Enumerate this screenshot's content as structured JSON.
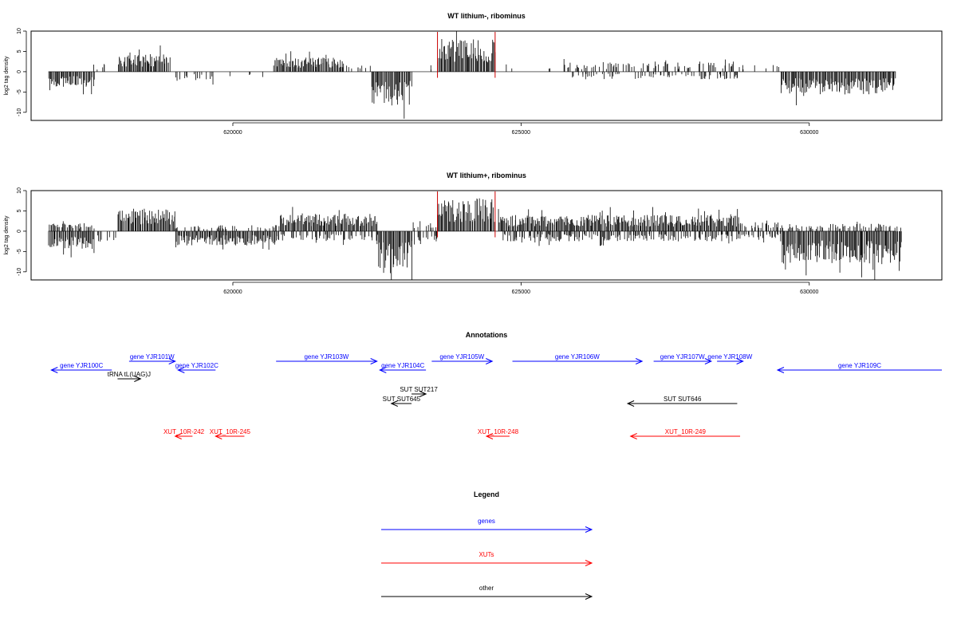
{
  "chart_data": [
    {
      "type": "bar",
      "title": "WT lithium-, ribominus",
      "ylabel": "log2 tag density",
      "xlim": [
        616500,
        632300
      ],
      "ylim": [
        -12,
        10
      ],
      "xticks": [
        620000,
        625000,
        630000
      ],
      "yticks": [
        10,
        5,
        0,
        -5,
        -10
      ],
      "highlight_region": {
        "start": 623550,
        "end": 624550,
        "color": "#cc0000"
      },
      "segments": [
        {
          "start": 616800,
          "end": 617600,
          "direction": "minus",
          "amp": 3.0
        },
        {
          "start": 617400,
          "end": 618000,
          "direction": "plus",
          "amp": 1.5,
          "density": 0.15
        },
        {
          "start": 618000,
          "end": 618900,
          "direction": "plus",
          "amp": 3.5
        },
        {
          "start": 619000,
          "end": 619800,
          "direction": "minus",
          "amp": 1.8,
          "density": 0.3
        },
        {
          "start": 619800,
          "end": 620600,
          "direction": "minus",
          "amp": 1.0,
          "density": 0.1
        },
        {
          "start": 620700,
          "end": 621900,
          "direction": "plus",
          "amp": 2.8
        },
        {
          "start": 621900,
          "end": 622400,
          "direction": "plus",
          "amp": 1.8,
          "density": 0.5
        },
        {
          "start": 622400,
          "end": 623100,
          "direction": "minus",
          "amp": 6.5
        },
        {
          "start": 623100,
          "end": 623550,
          "direction": "plus",
          "amp": 1.0,
          "density": 0.15
        },
        {
          "start": 623550,
          "end": 624550,
          "direction": "plus",
          "amp": 6.5
        },
        {
          "start": 624600,
          "end": 625800,
          "direction": "plus",
          "amp": 1.8,
          "density": 0.15
        },
        {
          "start": 625800,
          "end": 627200,
          "direction": "plus",
          "amp": 1.8,
          "density": 0.35
        },
        {
          "start": 625800,
          "end": 627200,
          "direction": "minus",
          "amp": 1.5,
          "density": 0.2
        },
        {
          "start": 627200,
          "end": 628800,
          "direction": "plus",
          "amp": 2.0,
          "density": 0.45
        },
        {
          "start": 627200,
          "end": 628800,
          "direction": "minus",
          "amp": 1.5,
          "density": 0.35
        },
        {
          "start": 628800,
          "end": 629500,
          "direction": "plus",
          "amp": 1.5,
          "density": 0.2
        },
        {
          "start": 629500,
          "end": 631500,
          "direction": "minus",
          "amp": 4.5
        }
      ]
    },
    {
      "type": "bar",
      "title": "WT lithium+, ribominus",
      "ylabel": "log2 tag density",
      "xlim": [
        616500,
        632300
      ],
      "ylim": [
        -12,
        10
      ],
      "xticks": [
        620000,
        625000,
        630000
      ],
      "yticks": [
        10,
        5,
        0,
        -5,
        -10
      ],
      "highlight_region": {
        "start": 623550,
        "end": 624550,
        "color": "#cc0000"
      },
      "segments": [
        {
          "start": 616800,
          "end": 617600,
          "direction": "plus",
          "amp": 1.6,
          "density": 0.6
        },
        {
          "start": 616800,
          "end": 617600,
          "direction": "minus",
          "amp": 3.5
        },
        {
          "start": 617600,
          "end": 618000,
          "direction": "minus",
          "amp": 2.0,
          "density": 0.5
        },
        {
          "start": 618000,
          "end": 619000,
          "direction": "plus",
          "amp": 4.5
        },
        {
          "start": 619000,
          "end": 620800,
          "direction": "minus",
          "amp": 2.8
        },
        {
          "start": 619000,
          "end": 620800,
          "direction": "plus",
          "amp": 1.2,
          "density": 0.3
        },
        {
          "start": 620800,
          "end": 622500,
          "direction": "plus",
          "amp": 3.5
        },
        {
          "start": 620800,
          "end": 622500,
          "direction": "minus",
          "amp": 2.0,
          "density": 0.5
        },
        {
          "start": 622500,
          "end": 623100,
          "direction": "minus",
          "amp": 7.5
        },
        {
          "start": 623100,
          "end": 623550,
          "direction": "plus",
          "amp": 2.0,
          "density": 0.5
        },
        {
          "start": 623100,
          "end": 623550,
          "direction": "minus",
          "amp": 2.0,
          "density": 0.5
        },
        {
          "start": 623550,
          "end": 624550,
          "direction": "plus",
          "amp": 6.5
        },
        {
          "start": 624600,
          "end": 628800,
          "direction": "plus",
          "amp": 3.2
        },
        {
          "start": 624600,
          "end": 628800,
          "direction": "minus",
          "amp": 2.0,
          "density": 0.6
        },
        {
          "start": 628800,
          "end": 629500,
          "direction": "plus",
          "amp": 1.8,
          "density": 0.6
        },
        {
          "start": 628800,
          "end": 629500,
          "direction": "minus",
          "amp": 1.5,
          "density": 0.5
        },
        {
          "start": 629500,
          "end": 631600,
          "direction": "minus",
          "amp": 6.5
        },
        {
          "start": 629500,
          "end": 631600,
          "direction": "plus",
          "amp": 1.5,
          "density": 0.4
        }
      ]
    }
  ],
  "annotations": {
    "title": "Annotations",
    "features": [
      {
        "label": "gene YJR100C",
        "kind": "gene",
        "color": "#0000ff",
        "row": 2,
        "start": 616850,
        "end": 617900,
        "strand": "-"
      },
      {
        "label": "gene YJR101W",
        "kind": "gene",
        "color": "#0000ff",
        "row": 1,
        "start": 618200,
        "end": 619000,
        "strand": "+"
      },
      {
        "label": "gene YJR102C",
        "kind": "gene",
        "color": "#0000ff",
        "row": 2,
        "start": 619050,
        "end": 619700,
        "strand": "-"
      },
      {
        "label": "tRNA tL(UAG)J",
        "kind": "other",
        "color": "#000000",
        "row": 3,
        "start": 618000,
        "end": 618400,
        "strand": "+"
      },
      {
        "label": "gene YJR103W",
        "kind": "gene",
        "color": "#0000ff",
        "row": 1,
        "start": 620750,
        "end": 622500,
        "strand": "+"
      },
      {
        "label": "gene YJR104C",
        "kind": "gene",
        "color": "#0000ff",
        "row": 2,
        "start": 622550,
        "end": 623350,
        "strand": "-"
      },
      {
        "label": "gene YJR105W",
        "kind": "gene",
        "color": "#0000ff",
        "row": 1,
        "start": 623450,
        "end": 624500,
        "strand": "+"
      },
      {
        "label": "gene YJR106W",
        "kind": "gene",
        "color": "#0000ff",
        "row": 1,
        "start": 624850,
        "end": 627100,
        "strand": "+"
      },
      {
        "label": "gene YJR107W",
        "kind": "gene",
        "color": "#0000ff",
        "row": 1,
        "start": 627300,
        "end": 628300,
        "strand": "+"
      },
      {
        "label": "gene YJR108W",
        "kind": "gene",
        "color": "#0000ff",
        "row": 1,
        "start": 628400,
        "end": 628850,
        "strand": "+"
      },
      {
        "label": "gene YJR109C",
        "kind": "gene",
        "color": "#0000ff",
        "row": 2,
        "start": 629450,
        "end": 632300,
        "strand": "-"
      },
      {
        "label": "SUT SUT217",
        "kind": "other",
        "color": "#000000",
        "row": 4,
        "start": 623100,
        "end": 623350,
        "strand": "+"
      },
      {
        "label": "SUT SUT645",
        "kind": "other",
        "color": "#000000",
        "row": 5,
        "start": 622750,
        "end": 623100,
        "strand": "-"
      },
      {
        "label": "SUT SUT646",
        "kind": "other",
        "color": "#000000",
        "row": 5,
        "start": 626850,
        "end": 628750,
        "strand": "-"
      },
      {
        "label": "XUT_10R-242",
        "kind": "xut",
        "color": "#ff0000",
        "row": 6,
        "start": 619000,
        "end": 619300,
        "strand": "-"
      },
      {
        "label": "XUT_10R-245",
        "kind": "xut",
        "color": "#ff0000",
        "row": 6,
        "start": 619700,
        "end": 620200,
        "strand": "-"
      },
      {
        "label": "XUT_10R-248",
        "kind": "xut",
        "color": "#ff0000",
        "row": 6,
        "start": 624400,
        "end": 624800,
        "strand": "-"
      },
      {
        "label": "XUT_10R-249",
        "kind": "xut",
        "color": "#ff0000",
        "row": 6,
        "start": 626900,
        "end": 628800,
        "strand": "-"
      }
    ]
  },
  "legend": {
    "title": "Legend",
    "entries": [
      {
        "label": "genes",
        "color": "#0000ff"
      },
      {
        "label": "XUTs",
        "color": "#ff0000"
      },
      {
        "label": "other",
        "color": "#000000"
      }
    ]
  }
}
